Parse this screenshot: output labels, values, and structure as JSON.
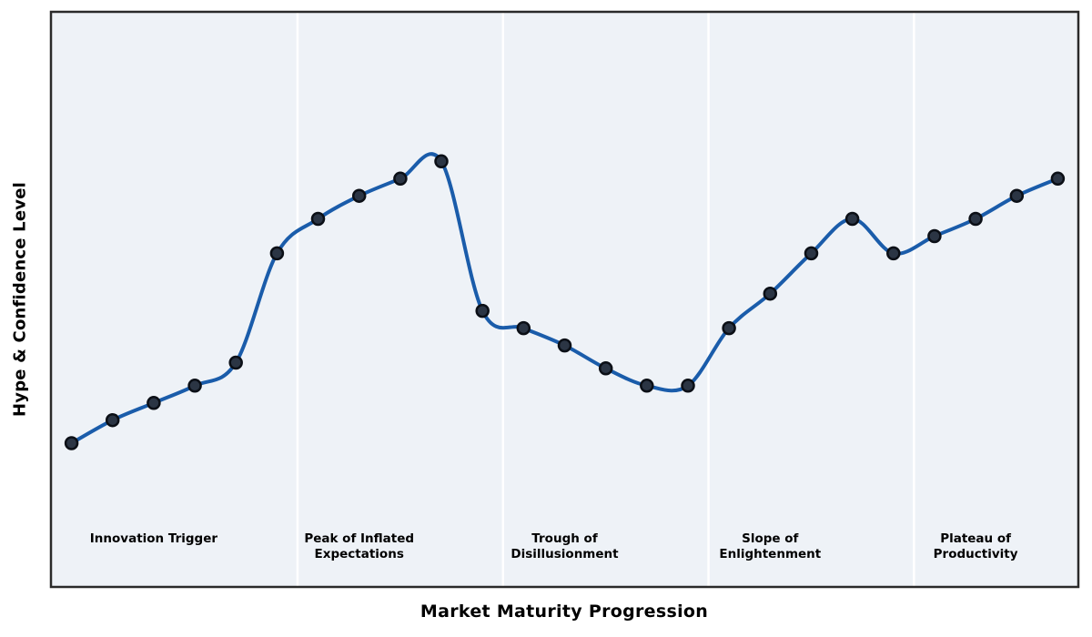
{
  "chart_data": {
    "type": "line",
    "title": "",
    "xlabel": "Market Maturity Progression",
    "ylabel": "Hype & Confidence Level",
    "x": [
      0,
      1,
      2,
      3,
      4,
      5,
      6,
      7,
      8,
      9,
      10,
      11,
      12,
      13,
      14,
      15,
      16,
      17,
      18,
      19,
      20,
      21,
      22,
      23,
      24
    ],
    "values": [
      25,
      29,
      32,
      35,
      39,
      58,
      64,
      68,
      71,
      74,
      48,
      45,
      42,
      38,
      35,
      35,
      45,
      51,
      58,
      64,
      58,
      61,
      64,
      68,
      71
    ],
    "xlim": [
      -0.5,
      24.5
    ],
    "ylim": [
      0,
      100
    ],
    "grid": "off",
    "legend": "off",
    "curve_style": "smooth-spline-through-points",
    "marker_style": "filled-circle-every-point",
    "phase_boundaries_x": [
      5,
      10,
      15,
      20
    ],
    "phases": [
      {
        "name": "Innovation Trigger",
        "lines": [
          "Innovation Trigger"
        ],
        "center_x": 2
      },
      {
        "name": "Peak of Inflated Expectations",
        "lines": [
          "Peak of Inflated",
          "Expectations"
        ],
        "center_x": 7
      },
      {
        "name": "Trough of Disillusionment",
        "lines": [
          "Trough of",
          "Disillusionment"
        ],
        "center_x": 12
      },
      {
        "name": "Slope of Enlightenment",
        "lines": [
          "Slope of",
          "Enlightenment"
        ],
        "center_x": 17
      },
      {
        "name": "Plateau of Productivity",
        "lines": [
          "Plateau of",
          "Productivity"
        ],
        "center_x": 22
      }
    ],
    "colors": {
      "line": "#1a5caa",
      "marker_fill": "#2b3544",
      "marker_edge": "#0b0f16",
      "plot_background": "#eef2f7",
      "phase_divider": "#ffffff",
      "plot_border": "#2a2a2a",
      "label_text": "#000000",
      "page_background": "#ffffff"
    }
  }
}
